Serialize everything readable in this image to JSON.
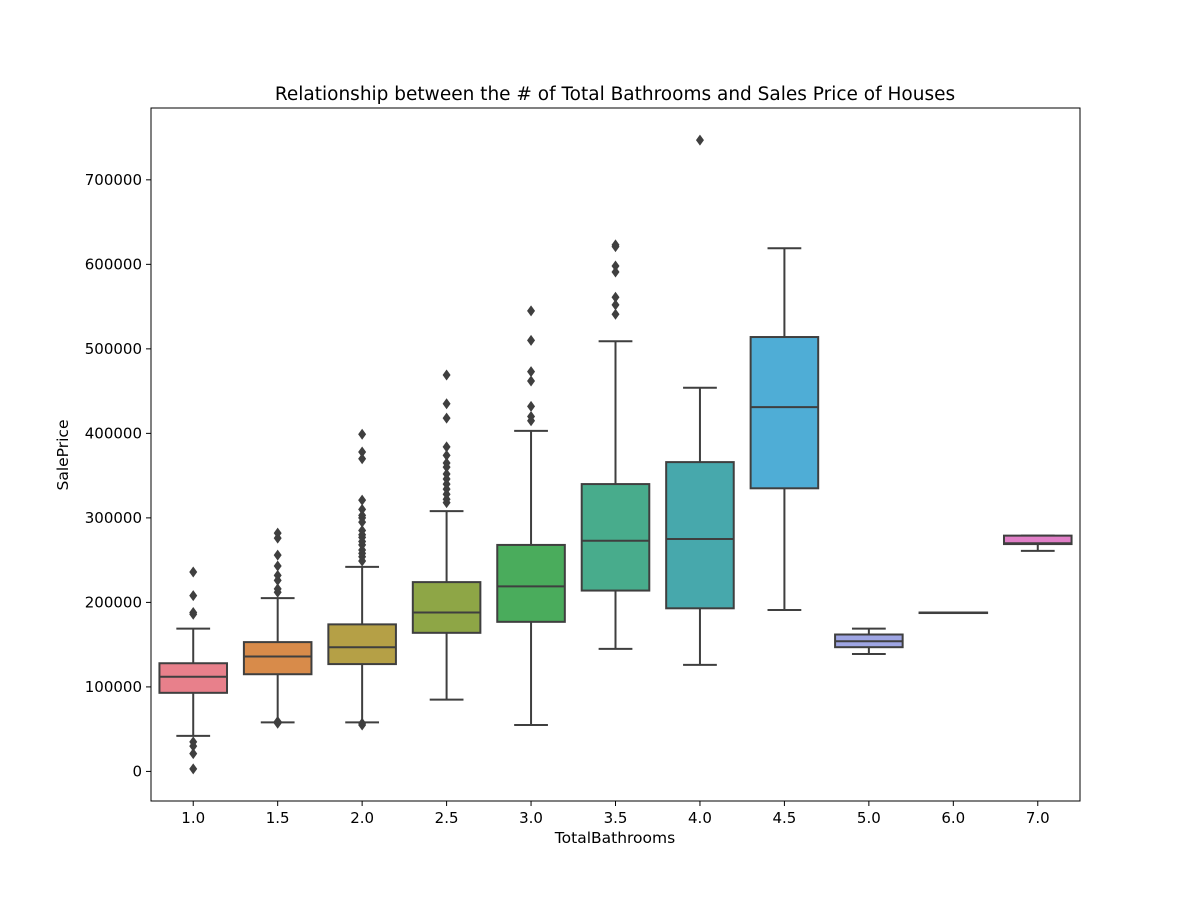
{
  "chart_data": {
    "type": "box",
    "title": "Relationship between the # of Total Bathrooms and Sales Price of Houses",
    "xlabel": "TotalBathrooms",
    "ylabel": "SalePrice",
    "ylim": [
      -35000,
      785000
    ],
    "yticks": [
      0,
      100000,
      200000,
      300000,
      400000,
      500000,
      600000,
      700000
    ],
    "categories": [
      "1.0",
      "1.5",
      "2.0",
      "2.5",
      "3.0",
      "3.5",
      "4.0",
      "4.5",
      "5.0",
      "6.0",
      "7.0"
    ],
    "colors": [
      "#e8808b",
      "#d88b4a",
      "#b5a046",
      "#8ea646",
      "#4aac5c",
      "#48ac8c",
      "#47a8ac",
      "#4fadd6",
      "#9ea5e3",
      "#cd96e3",
      "#e07fc7"
    ],
    "boxes": [
      {
        "whislo": 42000,
        "q1": 93000,
        "med": 112000,
        "q3": 128000,
        "whishi": 169000,
        "fliers": [
          236000,
          208000,
          188000,
          186000,
          35000,
          30000,
          21000,
          3000
        ]
      },
      {
        "whislo": 58000,
        "q1": 115000,
        "med": 136000,
        "q3": 153000,
        "whishi": 205000,
        "fliers": [
          282000,
          276000,
          256000,
          243000,
          232000,
          226000,
          216000,
          212000,
          59000,
          57000
        ]
      },
      {
        "whislo": 58000,
        "q1": 127000,
        "med": 147000,
        "q3": 174000,
        "whishi": 242000,
        "fliers": [
          399000,
          378000,
          370000,
          321000,
          310000,
          303000,
          300000,
          295000,
          285000,
          280000,
          277000,
          272000,
          268000,
          262000,
          258000,
          254000,
          249000,
          57000,
          55000
        ]
      },
      {
        "whislo": 85000,
        "q1": 164000,
        "med": 188000,
        "q3": 224000,
        "whishi": 308000,
        "fliers": [
          469000,
          435000,
          418000,
          384000,
          374000,
          365000,
          360000,
          352000,
          346000,
          340000,
          334000,
          328000,
          322000,
          318000
        ]
      },
      {
        "whislo": 55000,
        "q1": 177000,
        "med": 219000,
        "q3": 268000,
        "whishi": 403000,
        "fliers": [
          545000,
          510000,
          473000,
          462000,
          432000,
          420000,
          415000
        ]
      },
      {
        "whislo": 145000,
        "q1": 214000,
        "med": 273000,
        "q3": 340000,
        "whishi": 509000,
        "fliers": [
          623000,
          621000,
          598000,
          591000,
          561000,
          552000,
          541000
        ]
      },
      {
        "whislo": 126000,
        "q1": 193000,
        "med": 275000,
        "q3": 366000,
        "whishi": 454000,
        "fliers": [
          747000
        ]
      },
      {
        "whislo": 191000,
        "q1": 335000,
        "med": 431000,
        "q3": 514000,
        "whishi": 619000,
        "fliers": []
      },
      {
        "whislo": 139000,
        "q1": 147000,
        "med": 154000,
        "q3": 162000,
        "whishi": 169000,
        "fliers": []
      },
      {
        "whislo": 188000,
        "q1": 188000,
        "med": 188000,
        "q3": 188000,
        "whishi": 188000,
        "fliers": []
      },
      {
        "whislo": 261000,
        "q1": 269000,
        "med": 270000,
        "q3": 279000,
        "whishi": 279000,
        "fliers": []
      }
    ]
  }
}
